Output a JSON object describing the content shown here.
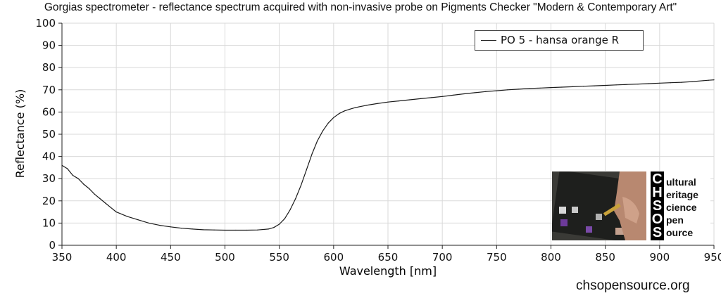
{
  "chart_data": {
    "type": "line",
    "title": "Gorgias spectrometer - reflectance spectrum acquired with non-invasive probe on Pigments Checker \"Modern & Contemporary Art\"",
    "xlabel": "Wavelength [nm]",
    "ylabel": "Reflectance (%)",
    "xlim": [
      350,
      950
    ],
    "ylim": [
      0,
      100
    ],
    "x_ticks": [
      350,
      400,
      450,
      500,
      550,
      600,
      650,
      700,
      750,
      800,
      850,
      900,
      950
    ],
    "y_ticks": [
      0,
      10,
      20,
      30,
      40,
      50,
      60,
      70,
      80,
      90,
      100
    ],
    "grid": true,
    "legend_position": "top-right",
    "series": [
      {
        "name": "PO 5 - hansa orange R",
        "color": "#1a1a1a",
        "x": [
          350,
          355,
          360,
          365,
          370,
          375,
          380,
          385,
          390,
          395,
          400,
          410,
          420,
          430,
          440,
          450,
          460,
          470,
          480,
          490,
          500,
          510,
          520,
          530,
          540,
          545,
          550,
          555,
          560,
          565,
          570,
          575,
          580,
          585,
          590,
          595,
          600,
          605,
          610,
          615,
          620,
          630,
          640,
          650,
          660,
          670,
          680,
          690,
          700,
          710,
          720,
          730,
          740,
          750,
          760,
          770,
          780,
          790,
          800,
          810,
          820,
          830,
          840,
          850,
          860,
          870,
          880,
          890,
          900,
          910,
          920,
          930,
          940,
          945,
          950
        ],
        "y": [
          36.0,
          34.5,
          31.5,
          30.0,
          27.5,
          25.5,
          23.0,
          21.0,
          19.0,
          17.0,
          15.0,
          13.0,
          11.5,
          10.0,
          9.0,
          8.3,
          7.7,
          7.3,
          7.0,
          6.9,
          6.8,
          6.8,
          6.8,
          6.9,
          7.3,
          8.0,
          9.5,
          12.0,
          16.0,
          21.0,
          27.0,
          34.0,
          41.0,
          47.0,
          51.5,
          55.0,
          57.5,
          59.3,
          60.5,
          61.3,
          62.0,
          63.0,
          63.8,
          64.5,
          65.0,
          65.5,
          66.0,
          66.5,
          67.0,
          67.6,
          68.2,
          68.7,
          69.2,
          69.6,
          70.0,
          70.3,
          70.6,
          70.8,
          71.0,
          71.2,
          71.4,
          71.6,
          71.8,
          72.0,
          72.2,
          72.4,
          72.6,
          72.8,
          73.0,
          73.2,
          73.4,
          73.7,
          74.1,
          74.3,
          74.5
        ]
      }
    ]
  },
  "logo": {
    "letters": [
      "C",
      "H",
      "S",
      "O",
      "S"
    ],
    "words": [
      "ultural",
      "eritage",
      "cience",
      "pen",
      "ource"
    ]
  },
  "website": "chsopensource.org"
}
